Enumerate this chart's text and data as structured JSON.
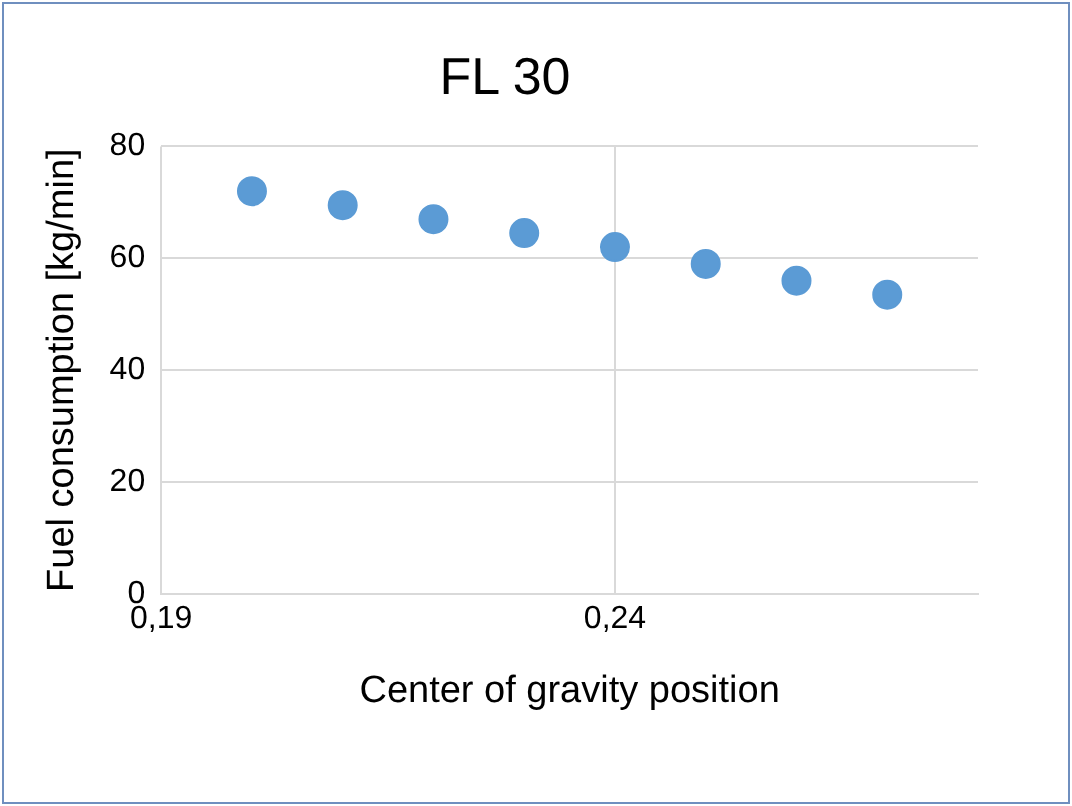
{
  "chart_data": {
    "type": "scatter",
    "title": "FL 30",
    "xlabel": "Center of gravity position",
    "ylabel": "Fuel consumption [kg/min]",
    "x": [
      0.2,
      0.21,
      0.22,
      0.23,
      0.24,
      0.25,
      0.26,
      0.27
    ],
    "series": [
      {
        "color": "#5b9bd5",
        "values": [
          72,
          69.5,
          67,
          64.5,
          62,
          59,
          56,
          53.5
        ]
      }
    ],
    "xlim": [
      0.19,
      0.28
    ],
    "xticks": [
      {
        "value": 0.19,
        "label": "0,19"
      },
      {
        "value": 0.24,
        "label": "0,24"
      }
    ],
    "ylim": [
      0,
      80
    ],
    "yticks": [
      0,
      20,
      40,
      60,
      80
    ],
    "grid": true,
    "legend": false,
    "marker": "circle"
  }
}
